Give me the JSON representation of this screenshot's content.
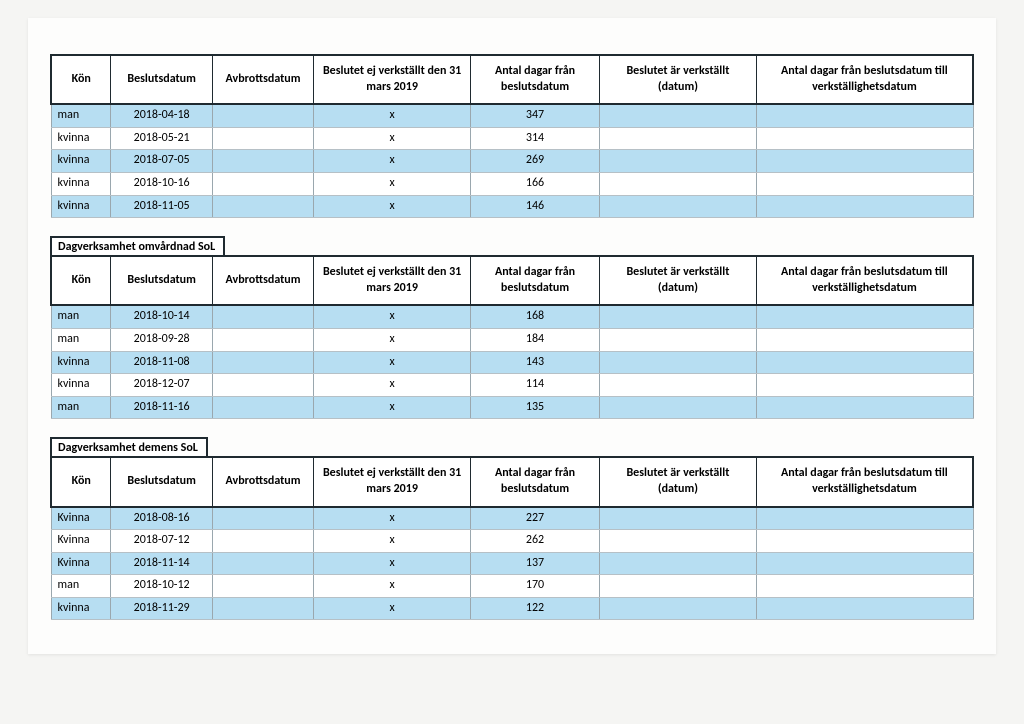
{
  "page": {
    "background": "#f5f5f3",
    "sheet_bg": "#fdfdfc",
    "band_color": "#b7def2",
    "border_color": "#1f2a30"
  },
  "headers": {
    "kon": "Kön",
    "beslutsdatum": "Beslutsdatum",
    "avbrottsdatum": "Avbrottsdatum",
    "ej_verkstallt": "Beslutet ej verkställt den 31 mars 2019",
    "antal_dagar_beslut": "Antal dagar från beslutsdatum",
    "ar_verkstallt": "Beslutet är verkställt (datum)",
    "antal_dagar_verkstall": "Antal dagar från beslutsdatum till verkställighetsdatum"
  },
  "tables": [
    {
      "title": "",
      "rows": [
        {
          "kon": "man",
          "beslutsdatum": "2018-04-18",
          "avbrottsdatum": "",
          "ej": "x",
          "dagar": "347",
          "verk": "",
          "dagar_v": ""
        },
        {
          "kon": "kvinna",
          "beslutsdatum": "2018-05-21",
          "avbrottsdatum": "",
          "ej": "x",
          "dagar": "314",
          "verk": "",
          "dagar_v": ""
        },
        {
          "kon": "kvinna",
          "beslutsdatum": "2018-07-05",
          "avbrottsdatum": "",
          "ej": "x",
          "dagar": "269",
          "verk": "",
          "dagar_v": ""
        },
        {
          "kon": "kvinna",
          "beslutsdatum": "2018-10-16",
          "avbrottsdatum": "",
          "ej": "x",
          "dagar": "166",
          "verk": "",
          "dagar_v": ""
        },
        {
          "kon": "kvinna",
          "beslutsdatum": "2018-11-05",
          "avbrottsdatum": "",
          "ej": "x",
          "dagar": "146",
          "verk": "",
          "dagar_v": ""
        }
      ]
    },
    {
      "title": "Dagverksamhet omvårdnad SoL",
      "rows": [
        {
          "kon": "man",
          "beslutsdatum": "2018-10-14",
          "avbrottsdatum": "",
          "ej": "x",
          "dagar": "168",
          "verk": "",
          "dagar_v": ""
        },
        {
          "kon": "man",
          "beslutsdatum": "2018-09-28",
          "avbrottsdatum": "",
          "ej": "x",
          "dagar": "184",
          "verk": "",
          "dagar_v": ""
        },
        {
          "kon": "kvinna",
          "beslutsdatum": "2018-11-08",
          "avbrottsdatum": "",
          "ej": "x",
          "dagar": "143",
          "verk": "",
          "dagar_v": ""
        },
        {
          "kon": "kvinna",
          "beslutsdatum": "2018-12-07",
          "avbrottsdatum": "",
          "ej": "x",
          "dagar": "114",
          "verk": "",
          "dagar_v": ""
        },
        {
          "kon": "man",
          "beslutsdatum": "2018-11-16",
          "avbrottsdatum": "",
          "ej": "x",
          "dagar": "135",
          "verk": "",
          "dagar_v": ""
        }
      ]
    },
    {
      "title": "Dagverksamhet demens SoL",
      "rows": [
        {
          "kon": "Kvinna",
          "beslutsdatum": "2018-08-16",
          "avbrottsdatum": "",
          "ej": "x",
          "dagar": "227",
          "verk": "",
          "dagar_v": ""
        },
        {
          "kon": "Kvinna",
          "beslutsdatum": "2018-07-12",
          "avbrottsdatum": "",
          "ej": "x",
          "dagar": "262",
          "verk": "",
          "dagar_v": ""
        },
        {
          "kon": "Kvinna",
          "beslutsdatum": "2018-11-14",
          "avbrottsdatum": "",
          "ej": "x",
          "dagar": "137",
          "verk": "",
          "dagar_v": ""
        },
        {
          "kon": "man",
          "beslutsdatum": "2018-10-12",
          "avbrottsdatum": "",
          "ej": "x",
          "dagar": "170",
          "verk": "",
          "dagar_v": ""
        },
        {
          "kon": "kvinna",
          "beslutsdatum": "2018-11-29",
          "avbrottsdatum": "",
          "ej": "x",
          "dagar": "122",
          "verk": "",
          "dagar_v": ""
        }
      ]
    }
  ]
}
